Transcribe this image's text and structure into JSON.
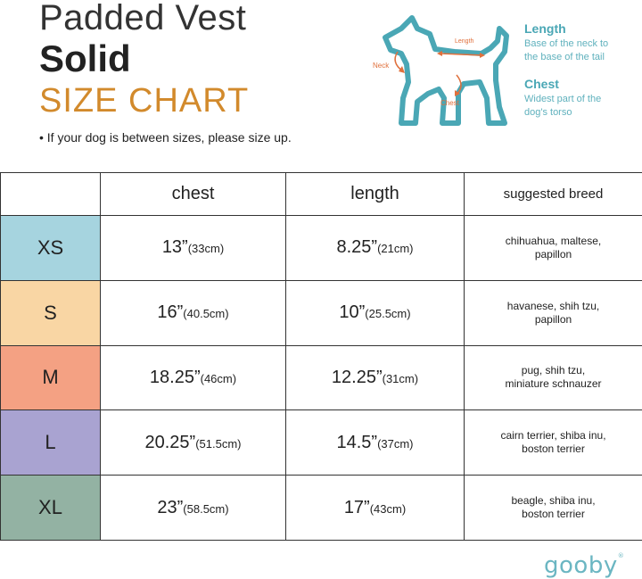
{
  "header": {
    "line1": "Padded Vest",
    "line2": "Solid",
    "line3": "SIZE CHART",
    "note": "• If your dog is between sizes, please size up."
  },
  "diagram": {
    "label_neck": "Neck",
    "label_length": "Length",
    "label_chest": "Chest"
  },
  "legend": {
    "length_title": "Length",
    "length_desc1": "Base of the neck to",
    "length_desc2": "the base of the tail",
    "chest_title": "Chest",
    "chest_desc1": "Widest part of the",
    "chest_desc2": "dog's torso"
  },
  "table": {
    "headers": [
      "",
      "chest",
      "length",
      "suggested breed"
    ],
    "rows": [
      {
        "size": "XS",
        "color": "#a6d4df",
        "chest": "13”",
        "chest_cm": "(33cm)",
        "length": "8.25”",
        "length_cm": "(21cm)",
        "breed1": "chihuahua, maltese,",
        "breed2": "papillon"
      },
      {
        "size": "S",
        "color": "#f9d6a4",
        "chest": "16”",
        "chest_cm": "(40.5cm)",
        "length": "10”",
        "length_cm": "(25.5cm)",
        "breed1": "havanese, shih tzu,",
        "breed2": "papillon"
      },
      {
        "size": "M",
        "color": "#f4a183",
        "chest": "18.25”",
        "chest_cm": "(46cm)",
        "length": "12.25”",
        "length_cm": "(31cm)",
        "breed1": "pug, shih tzu,",
        "breed2": "miniature schnauzer"
      },
      {
        "size": "L",
        "color": "#a9a3d1",
        "chest": "20.25”",
        "chest_cm": "(51.5cm)",
        "length": "14.5”",
        "length_cm": "(37cm)",
        "breed1": "cairn terrier, shiba inu,",
        "breed2": "boston terrier"
      },
      {
        "size": "XL",
        "color": "#93b2a3",
        "chest": "23”",
        "chest_cm": "(58.5cm)",
        "length": "17”",
        "length_cm": "(43cm)",
        "breed1": "beagle, shiba inu,",
        "breed2": "boston terrier"
      }
    ]
  },
  "brand": {
    "logo": "gooby",
    "mark": "®"
  },
  "colors": {
    "title_accent": "#d28a2c",
    "diagram_teal": "#4aa7b5",
    "arrow_orange": "#e0703c"
  }
}
